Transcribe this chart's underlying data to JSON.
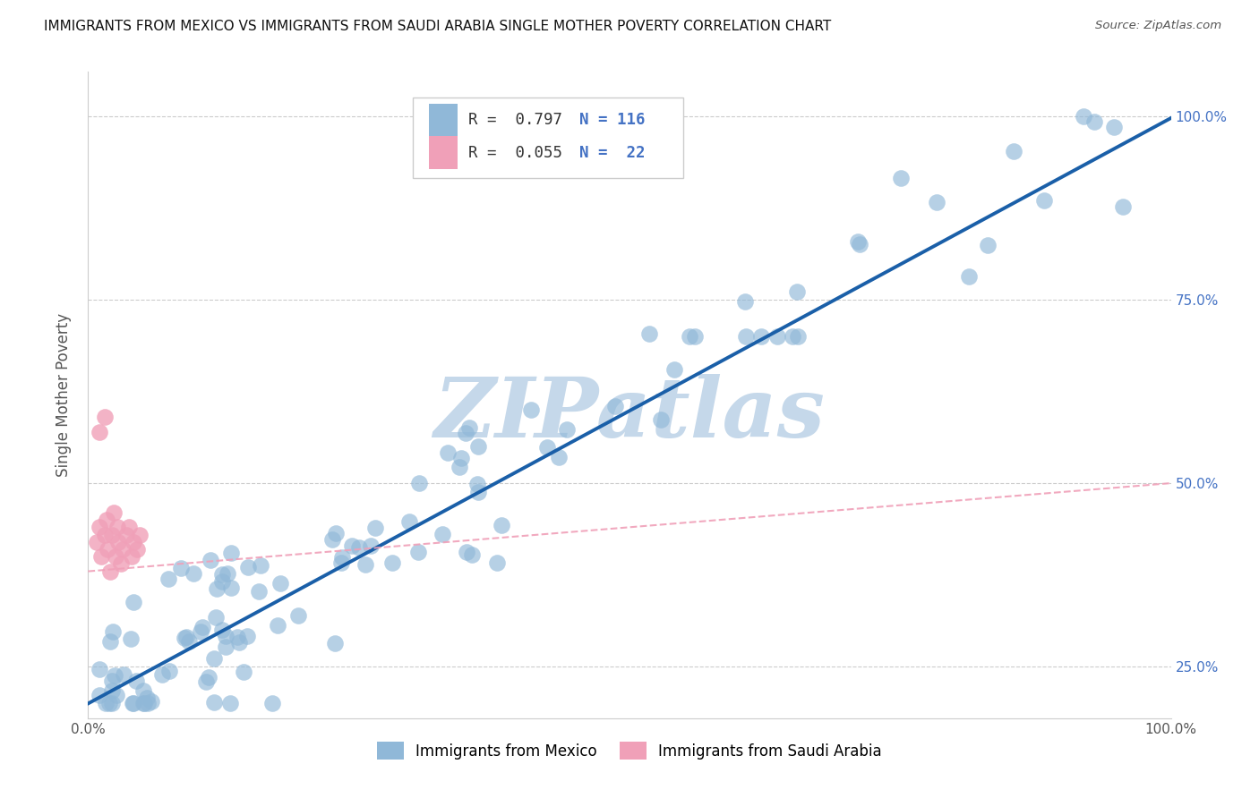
{
  "title": "IMMIGRANTS FROM MEXICO VS IMMIGRANTS FROM SAUDI ARABIA SINGLE MOTHER POVERTY CORRELATION CHART",
  "source": "Source: ZipAtlas.com",
  "ylabel": "Single Mother Poverty",
  "legend_labels": [
    "Immigrants from Mexico",
    "Immigrants from Saudi Arabia"
  ],
  "mexico_color": "#90b8d8",
  "saudi_color": "#f0a0b8",
  "trend_mexico_color": "#1a5fa8",
  "trend_saudi_color": "#f0a0b8",
  "r_value_color": "#333333",
  "n_value_color": "#4472c4",
  "right_tick_color": "#4472c4",
  "xlim": [
    0.0,
    1.0
  ],
  "ylim": [
    0.18,
    1.06
  ],
  "y_ticks": [
    0.25,
    0.5,
    0.75,
    1.0
  ],
  "y_tick_labels": [
    "25.0%",
    "50.0%",
    "75.0%",
    "100.0%"
  ],
  "watermark": "ZIPatlas",
  "watermark_color": "#c5d8ea",
  "background_color": "#ffffff",
  "grid_color": "#cccccc",
  "trend_mex_slope": 0.797,
  "trend_mex_intercept": 0.2,
  "trend_sau_slope": 0.12,
  "trend_sau_intercept": 0.38
}
